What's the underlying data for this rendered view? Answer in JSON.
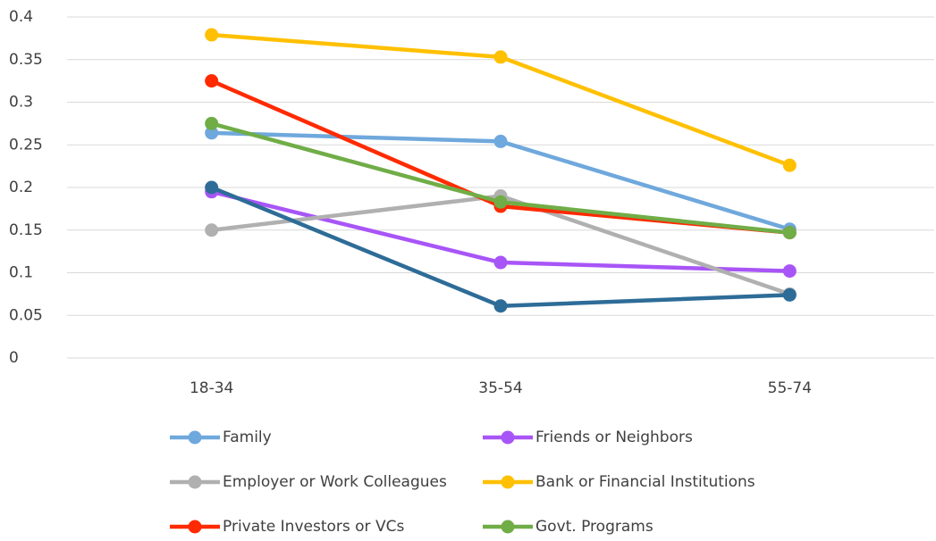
{
  "chart_data": {
    "type": "line",
    "categories": [
      "18-34",
      "35-54",
      "55-74"
    ],
    "series": [
      {
        "name": "Family",
        "color": "#6fa8dc",
        "values": [
          0.264,
          0.254,
          0.151
        ]
      },
      {
        "name": "Friends or Neighbors",
        "color": "#a855f7",
        "values": [
          0.195,
          0.112,
          0.102
        ]
      },
      {
        "name": "Employer or Work Colleagues",
        "color": "#b0b0b0",
        "values": [
          0.15,
          0.19,
          0.075
        ]
      },
      {
        "name": "Bank or Financial Institutions",
        "color": "#ffc000",
        "values": [
          0.379,
          0.353,
          0.226
        ]
      },
      {
        "name": "Private Investors or VCs",
        "color": "#ff2a00",
        "values": [
          0.325,
          0.178,
          0.147
        ]
      },
      {
        "name": "Govt. Programs",
        "color": "#70ad47",
        "values": [
          0.275,
          0.183,
          0.147
        ]
      },
      {
        "color": "#2e6c98",
        "values": [
          0.2,
          0.061,
          0.074
        ]
      }
    ],
    "ylim": [
      0,
      0.4
    ],
    "yticks": [
      0,
      0.05,
      0.1,
      0.15,
      0.2,
      0.25,
      0.3,
      0.35,
      0.4
    ],
    "grid": true
  }
}
